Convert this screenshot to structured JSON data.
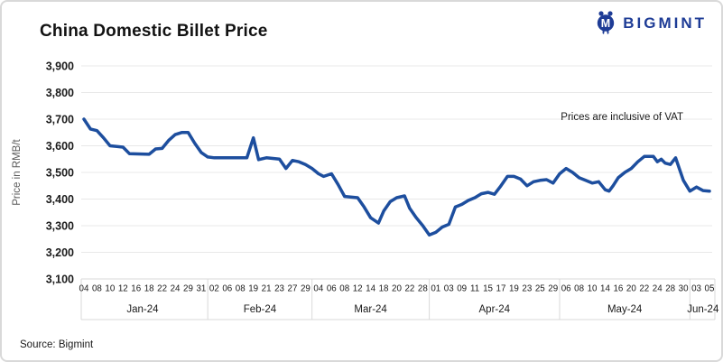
{
  "logo": {
    "text": "BIGMINT",
    "color": "#1e3c96"
  },
  "chart_data": {
    "type": "line",
    "title": "China Domestic Billet Price",
    "ylabel": "Price in RMB/t",
    "annotation": "Prices are inclusive of VAT",
    "source": "Source: Bigmint",
    "ylim": [
      3100,
      3900
    ],
    "ytick_step": 100,
    "yticks": [
      "3,900",
      "3,800",
      "3,700",
      "3,600",
      "3,500",
      "3,400",
      "3,300",
      "3,200",
      "3,100"
    ],
    "grid": "horizontal",
    "legend": "none",
    "line_color": "#1d4e9e",
    "months": [
      {
        "label": "Jan-24",
        "days": [
          "04",
          "08",
          "10",
          "12",
          "16",
          "18",
          "22",
          "24",
          "29",
          "31"
        ]
      },
      {
        "label": "Feb-24",
        "days": [
          "02",
          "06",
          "08",
          "19",
          "21",
          "23",
          "27",
          "29"
        ]
      },
      {
        "label": "Mar-24",
        "days": [
          "04",
          "06",
          "08",
          "12",
          "14",
          "18",
          "20",
          "22",
          "28"
        ]
      },
      {
        "label": "Apr-24",
        "days": [
          "01",
          "03",
          "09",
          "11",
          "15",
          "17",
          "19",
          "23",
          "25",
          "29"
        ]
      },
      {
        "label": "May-24",
        "days": [
          "06",
          "08",
          "10",
          "14",
          "16",
          "20",
          "22",
          "24",
          "28",
          "30"
        ]
      },
      {
        "label": "Jun-24",
        "days": [
          "03",
          "05"
        ]
      }
    ],
    "series_name": "China domestic billet price (RMB/t, incl. VAT)",
    "points": [
      [
        0,
        3700
      ],
      [
        0.5,
        3663
      ],
      [
        1,
        3657
      ],
      [
        1.5,
        3630
      ],
      [
        2,
        3600
      ],
      [
        3,
        3595
      ],
      [
        3.5,
        3570
      ],
      [
        5,
        3568
      ],
      [
        5.5,
        3588
      ],
      [
        6,
        3590
      ],
      [
        6.5,
        3620
      ],
      [
        7,
        3642
      ],
      [
        7.5,
        3650
      ],
      [
        8,
        3650
      ],
      [
        8.5,
        3610
      ],
      [
        9,
        3575
      ],
      [
        9.5,
        3558
      ],
      [
        10,
        3555
      ],
      [
        12.5,
        3555
      ],
      [
        13,
        3630
      ],
      [
        13.4,
        3548
      ],
      [
        14,
        3555
      ],
      [
        15,
        3550
      ],
      [
        15.5,
        3515
      ],
      [
        16,
        3545
      ],
      [
        16.5,
        3540
      ],
      [
        17,
        3530
      ],
      [
        17.5,
        3515
      ],
      [
        18,
        3495
      ],
      [
        18.4,
        3485
      ],
      [
        19,
        3495
      ],
      [
        19.5,
        3455
      ],
      [
        20,
        3410
      ],
      [
        21,
        3405
      ],
      [
        21.5,
        3370
      ],
      [
        22,
        3330
      ],
      [
        22.6,
        3310
      ],
      [
        23,
        3355
      ],
      [
        23.5,
        3390
      ],
      [
        24,
        3405
      ],
      [
        24.6,
        3412
      ],
      [
        25,
        3365
      ],
      [
        25.5,
        3330
      ],
      [
        26,
        3300
      ],
      [
        26.5,
        3265
      ],
      [
        27,
        3275
      ],
      [
        27.5,
        3295
      ],
      [
        28,
        3305
      ],
      [
        28.5,
        3370
      ],
      [
        29,
        3380
      ],
      [
        29.5,
        3395
      ],
      [
        30,
        3405
      ],
      [
        30.5,
        3420
      ],
      [
        31,
        3425
      ],
      [
        31.5,
        3418
      ],
      [
        32,
        3450
      ],
      [
        32.5,
        3485
      ],
      [
        33,
        3485
      ],
      [
        33.5,
        3475
      ],
      [
        34,
        3450
      ],
      [
        34.5,
        3465
      ],
      [
        35,
        3470
      ],
      [
        35.5,
        3473
      ],
      [
        36,
        3460
      ],
      [
        36.5,
        3495
      ],
      [
        37,
        3515
      ],
      [
        37.5,
        3500
      ],
      [
        38,
        3480
      ],
      [
        38.5,
        3470
      ],
      [
        39,
        3460
      ],
      [
        39.5,
        3465
      ],
      [
        40,
        3435
      ],
      [
        40.3,
        3430
      ],
      [
        40.6,
        3450
      ],
      [
        41,
        3480
      ],
      [
        41.5,
        3500
      ],
      [
        42,
        3515
      ],
      [
        42.5,
        3540
      ],
      [
        43,
        3560
      ],
      [
        43.7,
        3560
      ],
      [
        44,
        3540
      ],
      [
        44.3,
        3550
      ],
      [
        44.6,
        3535
      ],
      [
        45,
        3530
      ],
      [
        45.4,
        3555
      ],
      [
        46,
        3470
      ],
      [
        46.5,
        3430
      ],
      [
        47,
        3445
      ],
      [
        47.5,
        3432
      ],
      [
        48,
        3430
      ]
    ]
  }
}
